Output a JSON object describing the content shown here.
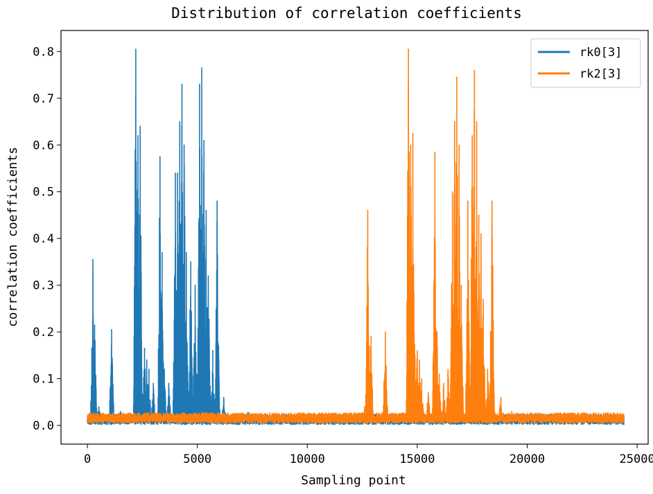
{
  "chart_data": {
    "type": "line",
    "title": "Distribution of correlation coefficients",
    "xlabel": "Sampling point",
    "ylabel": "correlation coefficients",
    "xlim": [
      -1200,
      25500
    ],
    "ylim": [
      -0.04,
      0.845
    ],
    "x_ticks": [
      0,
      5000,
      10000,
      15000,
      20000,
      25000
    ],
    "x_tick_labels": [
      "0",
      "5000",
      "10000",
      "15000",
      "20000",
      "25000"
    ],
    "y_ticks": [
      0.0,
      0.1,
      0.2,
      0.3,
      0.4,
      0.5,
      0.6,
      0.7,
      0.8
    ],
    "y_tick_labels": [
      "0.0",
      "0.1",
      "0.2",
      "0.3",
      "0.4",
      "0.5",
      "0.6",
      "0.7",
      "0.8"
    ],
    "grid": false,
    "legend_position": "top-right",
    "series": [
      {
        "name": "rk0[3]",
        "color": "#1f77b4",
        "baseline": 0.012,
        "x_range": [
          0,
          24400
        ],
        "peaks": [
          [
            250,
            0.355
          ],
          [
            330,
            0.215
          ],
          [
            520,
            0.04
          ],
          [
            1100,
            0.205
          ],
          [
            1500,
            0.03
          ],
          [
            2200,
            0.805
          ],
          [
            2300,
            0.62
          ],
          [
            2400,
            0.64
          ],
          [
            2600,
            0.165
          ],
          [
            2700,
            0.14
          ],
          [
            2800,
            0.12
          ],
          [
            3000,
            0.09
          ],
          [
            3300,
            0.575
          ],
          [
            3400,
            0.37
          ],
          [
            3500,
            0.12
          ],
          [
            3700,
            0.09
          ],
          [
            4000,
            0.54
          ],
          [
            4100,
            0.54
          ],
          [
            4200,
            0.65
          ],
          [
            4300,
            0.73
          ],
          [
            4400,
            0.6
          ],
          [
            4500,
            0.37
          ],
          [
            4700,
            0.35
          ],
          [
            4900,
            0.3
          ],
          [
            5100,
            0.73
          ],
          [
            5200,
            0.765
          ],
          [
            5300,
            0.61
          ],
          [
            5400,
            0.46
          ],
          [
            5500,
            0.32
          ],
          [
            5700,
            0.16
          ],
          [
            5900,
            0.48
          ],
          [
            6000,
            0.06
          ],
          [
            6200,
            0.06
          ],
          [
            7300,
            0.028
          ],
          [
            18300,
            0.015
          ]
        ]
      },
      {
        "name": "rk2[3]",
        "color": "#ff7f0e",
        "baseline": 0.015,
        "x_range": [
          0,
          24400
        ],
        "peaks": [
          [
            12600,
            0.04
          ],
          [
            12750,
            0.46
          ],
          [
            12900,
            0.19
          ],
          [
            13550,
            0.2
          ],
          [
            14600,
            0.805
          ],
          [
            14700,
            0.6
          ],
          [
            14800,
            0.625
          ],
          [
            14900,
            0.15
          ],
          [
            15000,
            0.16
          ],
          [
            15100,
            0.14
          ],
          [
            15200,
            0.1
          ],
          [
            15500,
            0.07
          ],
          [
            15800,
            0.585
          ],
          [
            15900,
            0.2
          ],
          [
            16000,
            0.11
          ],
          [
            16200,
            0.09
          ],
          [
            16400,
            0.12
          ],
          [
            16600,
            0.5
          ],
          [
            16700,
            0.65
          ],
          [
            16800,
            0.745
          ],
          [
            16900,
            0.6
          ],
          [
            17000,
            0.3
          ],
          [
            17300,
            0.48
          ],
          [
            17500,
            0.62
          ],
          [
            17600,
            0.76
          ],
          [
            17700,
            0.65
          ],
          [
            17800,
            0.45
          ],
          [
            17900,
            0.41
          ],
          [
            18000,
            0.27
          ],
          [
            18200,
            0.12
          ],
          [
            18400,
            0.48
          ],
          [
            18800,
            0.06
          ],
          [
            19300,
            0.03
          ]
        ]
      }
    ]
  }
}
